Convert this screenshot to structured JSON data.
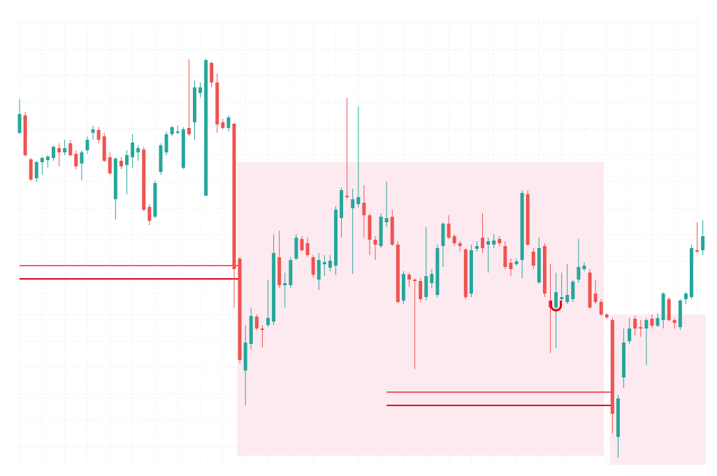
{
  "chart_data": {
    "type": "candlestick",
    "up_color": "#26a69a",
    "down_color": "#ef5350",
    "zone_color": "#fdeaf0",
    "level_color": "#e3000f",
    "grid": true,
    "ylim": [
      0,
      680
    ],
    "yticks": [
      647,
      609,
      572,
      534,
      496,
      458,
      420,
      382,
      344,
      306,
      268,
      230,
      192,
      154,
      116,
      78,
      40
    ],
    "xticks": [
      0,
      4,
      8,
      12,
      16,
      20,
      24,
      28,
      32,
      36,
      40,
      44,
      48,
      52,
      56,
      60,
      64,
      68,
      72,
      76,
      80,
      84,
      88,
      92,
      96,
      100,
      104,
      108,
      112,
      116,
      120
    ],
    "open": [
      490,
      515,
      452,
      425,
      448,
      451,
      454,
      468,
      462,
      475,
      460,
      446,
      465,
      490,
      494,
      485,
      455,
      395,
      450,
      444,
      455,
      462,
      466,
      384,
      370,
      434,
      462,
      488,
      490,
      440,
      497,
      505,
      547,
      400,
      590,
      562,
      505,
      497,
      503,
      310,
      150,
      188,
      227,
      210,
      215,
      220,
      312,
      272,
      272,
      310,
      338,
      332,
      312,
      280,
      302,
      297,
      300,
      368,
      400,
      382,
      388,
      390,
      372,
      337,
      328,
      362,
      370,
      330,
      250,
      287,
      280,
      278,
      255,
      275,
      258,
      328,
      360,
      342,
      332,
      323,
      260,
      324,
      340,
      330,
      330,
      338,
      328,
      304,
      302,
      308,
      402,
      320,
      276,
      328,
      250,
      240,
      252,
      248,
      252,
      280,
      295,
      290,
      260,
      248,
      230,
      222,
      55,
      140,
      192,
      224,
      212,
      210,
      224,
      214,
      222,
      252,
      222,
      212,
      252,
      255,
      322,
      322
    ],
    "high": [
      538,
      520,
      454,
      450,
      456,
      458,
      472,
      475,
      480,
      480,
      465,
      465,
      485,
      500,
      498,
      490,
      462,
      455,
      455,
      465,
      488,
      472,
      470,
      388,
      422,
      475,
      492,
      500,
      500,
      498,
      595,
      565,
      562,
      596,
      592,
      575,
      510,
      515,
      504,
      312,
      215,
      240,
      230,
      215,
      280,
      345,
      350,
      290,
      312,
      345,
      342,
      340,
      315,
      318,
      315,
      315,
      385,
      412,
      540,
      410,
      528,
      415,
      375,
      342,
      375,
      420,
      380,
      335,
      292,
      290,
      282,
      282,
      355,
      295,
      330,
      362,
      372,
      345,
      335,
      325,
      330,
      335,
      375,
      340,
      345,
      342,
      335,
      310,
      310,
      408,
      408,
      325,
      340,
      332,
      302,
      290,
      290,
      302,
      280,
      338,
      305,
      295,
      280,
      252,
      232,
      225,
      115,
      210,
      225,
      228,
      222,
      225,
      230,
      232,
      262,
      255,
      225,
      252,
      262,
      330,
      362,
      365
    ],
    "low": [
      488,
      456,
      421,
      420,
      430,
      440,
      450,
      442,
      458,
      456,
      438,
      422,
      460,
      480,
      475,
      448,
      430,
      366,
      438,
      402,
      440,
      450,
      378,
      358,
      368,
      430,
      458,
      485,
      488,
      438,
      485,
      480,
      540,
      400,
      555,
      490,
      495,
      492,
      240,
      160,
      100,
      180,
      208,
      183,
      212,
      215,
      268,
      240,
      268,
      308,
      320,
      312,
      283,
      265,
      285,
      292,
      287,
      340,
      395,
      288,
      383,
      340,
      315,
      308,
      325,
      355,
      328,
      246,
      245,
      270,
      152,
      248,
      250,
      268,
      255,
      298,
      338,
      328,
      320,
      252,
      255,
      320,
      318,
      290,
      325,
      328,
      295,
      285,
      300,
      282,
      328,
      295,
      274,
      255,
      175,
      182,
      248,
      245,
      248,
      275,
      292,
      238,
      245,
      228,
      224,
      60,
      25,
      125,
      188,
      200,
      198,
      158,
      210,
      212,
      210,
      220,
      210,
      208,
      245,
      252,
      318,
      315
    ],
    "close": [
      517,
      458,
      423,
      448,
      454,
      456,
      470,
      462,
      468,
      458,
      442,
      462,
      480,
      495,
      480,
      450,
      432,
      453,
      442,
      458,
      476,
      468,
      380,
      364,
      418,
      472,
      488,
      498,
      492,
      495,
      488,
      555,
      555,
      594,
      562,
      502,
      497,
      512,
      295,
      165,
      190,
      228,
      210,
      208,
      225,
      318,
      272,
      275,
      308,
      340,
      322,
      315,
      287,
      308,
      305,
      307,
      380,
      408,
      398,
      395,
      398,
      372,
      337,
      330,
      370,
      368,
      330,
      248,
      288,
      280,
      278,
      252,
      285,
      288,
      325,
      360,
      340,
      332,
      328,
      255,
      322,
      328,
      325,
      335,
      336,
      332,
      298,
      295,
      306,
      404,
      330,
      300,
      325,
      260,
      240,
      262,
      255,
      258,
      277,
      298,
      300,
      240,
      248,
      230,
      226,
      88,
      110,
      190,
      210,
      210,
      210,
      222,
      214,
      225,
      260,
      222,
      218,
      250,
      260,
      325,
      320,
      342
    ],
    "zones": [
      {
        "start": 39,
        "end": 103,
        "low": 28,
        "high": 448
      },
      {
        "start": 105,
        "end": 121,
        "low": 15,
        "high": 230
      }
    ],
    "levels": [
      {
        "start": 0,
        "end": 39,
        "value": 300
      },
      {
        "start": 0,
        "end": 39,
        "value": 281
      },
      {
        "start": 65,
        "end": 105,
        "value": 119
      },
      {
        "start": 65,
        "end": 105,
        "value": 100
      }
    ],
    "marker": {
      "index": 95,
      "value": 243
    }
  }
}
